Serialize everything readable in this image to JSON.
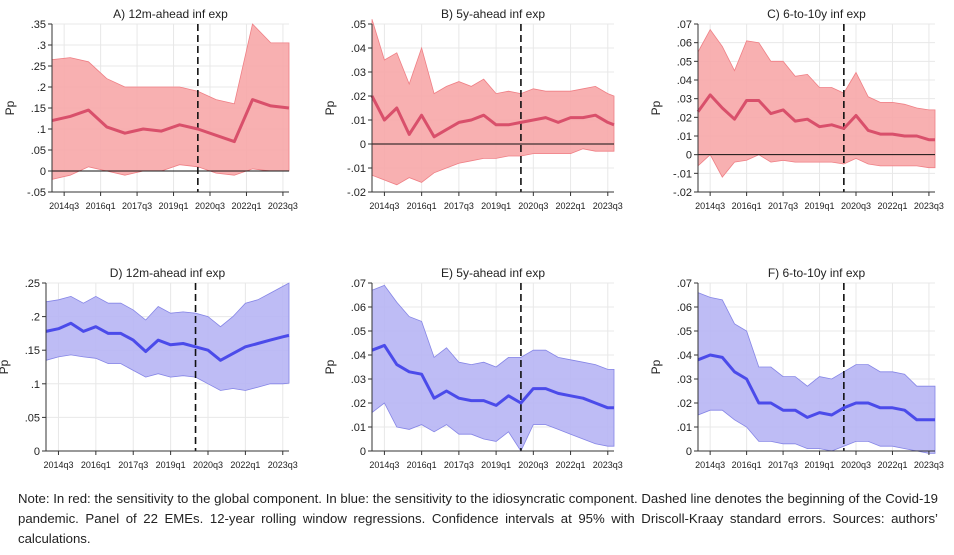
{
  "x_ticks": [
    "2014q3",
    "2016q1",
    "2017q3",
    "2019q1",
    "2020q3",
    "2022q1",
    "2023q3"
  ],
  "ylabel": "Pp",
  "colors": {
    "red_line": "#d9506b",
    "red_band": "#f7a7a9",
    "red_band_edge": "#ef7f85",
    "blue_line": "#4b4bea",
    "blue_band": "#b7b5f4",
    "blue_band_edge": "#8585e6"
  },
  "note": "Note: In red: the sensitivity to the global component. In blue: the sensitivity to the idiosyncratic component. Dashed line denotes the beginning of the Covid-19 pandemic. Panel of 22 EMEs. 12-year rolling window regressions. Confidence intervals at 95% with Driscoll-Kraay standard errors. Sources: authors’ calculations.",
  "chart_data": [
    {
      "type": "line",
      "title": "A) 12m-ahead inf exp",
      "ylabel": "Pp",
      "color": "red",
      "ylim": [
        -0.05,
        0.35
      ],
      "yticks": [
        -0.05,
        0,
        0.05,
        0.1,
        0.15,
        0.2,
        0.25,
        0.3,
        0.35
      ],
      "ytick_labels": [
        "-.05",
        "0",
        ".05",
        ".1",
        ".15",
        ".2",
        ".25",
        ".3",
        ".35"
      ],
      "zero_line": true,
      "dashed_at": "2020q1",
      "x": [
        "2014q1",
        "2014q4",
        "2015q3",
        "2016q2",
        "2017q1",
        "2017q4",
        "2018q3",
        "2019q2",
        "2020q1",
        "2020q4",
        "2021q3",
        "2022q2",
        "2023q1",
        "2023q4"
      ],
      "series": [
        {
          "values": [
            0.12,
            0.13,
            0.145,
            0.105,
            0.09,
            0.1,
            0.095,
            0.11,
            0.1,
            0.085,
            0.07,
            0.17,
            0.155,
            0.15
          ],
          "lower": [
            -0.02,
            -0.01,
            0.01,
            0.0,
            -0.01,
            0.0,
            0.0,
            0.015,
            0.01,
            -0.005,
            -0.01,
            0.005,
            0.0,
            0.0
          ],
          "upper": [
            0.265,
            0.27,
            0.26,
            0.22,
            0.2,
            0.2,
            0.2,
            0.2,
            0.19,
            0.17,
            0.16,
            0.35,
            0.305,
            0.305
          ]
        }
      ]
    },
    {
      "type": "line",
      "title": "B) 5y-ahead inf exp",
      "ylabel": "Pp",
      "color": "red",
      "ylim": [
        -0.02,
        0.05
      ],
      "yticks": [
        -0.02,
        -0.01,
        0,
        0.01,
        0.02,
        0.03,
        0.04,
        0.05
      ],
      "ytick_labels": [
        "-.02",
        "-.01",
        "0",
        ".01",
        ".02",
        ".03",
        ".04",
        ".05"
      ],
      "zero_line": true,
      "dashed_at": "2020q1",
      "x": [
        "2014q1",
        "2014q3",
        "2015q1",
        "2015q3",
        "2016q1",
        "2016q3",
        "2017q1",
        "2017q3",
        "2018q1",
        "2018q3",
        "2019q1",
        "2019q3",
        "2020q1",
        "2020q3",
        "2021q1",
        "2021q3",
        "2022q1",
        "2022q3",
        "2023q1",
        "2023q3",
        "2023q4"
      ],
      "series": [
        {
          "values": [
            0.02,
            0.01,
            0.015,
            0.004,
            0.012,
            0.003,
            0.006,
            0.009,
            0.01,
            0.012,
            0.008,
            0.008,
            0.009,
            0.01,
            0.011,
            0.009,
            0.011,
            0.011,
            0.012,
            0.009,
            0.008
          ],
          "lower": [
            -0.013,
            -0.015,
            -0.017,
            -0.014,
            -0.016,
            -0.012,
            -0.01,
            -0.008,
            -0.007,
            -0.006,
            -0.006,
            -0.005,
            -0.005,
            -0.004,
            -0.004,
            -0.004,
            -0.004,
            -0.002,
            -0.003,
            -0.003,
            -0.003
          ],
          "upper": [
            0.052,
            0.035,
            0.038,
            0.025,
            0.04,
            0.021,
            0.024,
            0.026,
            0.024,
            0.027,
            0.021,
            0.022,
            0.021,
            0.023,
            0.022,
            0.022,
            0.022,
            0.023,
            0.024,
            0.021,
            0.02
          ]
        }
      ]
    },
    {
      "type": "line",
      "title": "C) 6-to-10y inf exp",
      "ylabel": "Pp",
      "color": "red",
      "ylim": [
        -0.02,
        0.07
      ],
      "yticks": [
        -0.02,
        -0.01,
        0,
        0.01,
        0.02,
        0.03,
        0.04,
        0.05,
        0.06,
        0.07
      ],
      "ytick_labels": [
        "-.02",
        "-.01",
        "0",
        ".01",
        ".02",
        ".03",
        ".04",
        ".05",
        ".06",
        ".07"
      ],
      "zero_line": true,
      "dashed_at": "2020q1",
      "x": [
        "2014q1",
        "2014q3",
        "2015q1",
        "2015q3",
        "2016q1",
        "2016q3",
        "2017q1",
        "2017q3",
        "2018q1",
        "2018q3",
        "2019q1",
        "2019q3",
        "2020q1",
        "2020q3",
        "2021q1",
        "2021q3",
        "2022q1",
        "2022q3",
        "2023q1",
        "2023q3",
        "2023q4"
      ],
      "series": [
        {
          "values": [
            0.023,
            0.032,
            0.025,
            0.019,
            0.029,
            0.029,
            0.022,
            0.024,
            0.018,
            0.019,
            0.015,
            0.016,
            0.014,
            0.021,
            0.013,
            0.011,
            0.011,
            0.01,
            0.01,
            0.008,
            0.008
          ],
          "lower": [
            -0.006,
            0.0,
            -0.012,
            -0.004,
            -0.003,
            0.0,
            -0.004,
            -0.003,
            -0.004,
            -0.004,
            -0.004,
            -0.004,
            -0.005,
            -0.002,
            -0.005,
            -0.006,
            -0.006,
            -0.006,
            -0.006,
            -0.007,
            -0.007
          ],
          "upper": [
            0.055,
            0.067,
            0.058,
            0.045,
            0.061,
            0.06,
            0.05,
            0.05,
            0.042,
            0.043,
            0.036,
            0.036,
            0.033,
            0.044,
            0.031,
            0.028,
            0.028,
            0.027,
            0.025,
            0.024,
            0.024
          ]
        }
      ]
    },
    {
      "type": "line",
      "title": "D) 12m-ahead inf exp",
      "ylabel": "Pp",
      "color": "blue",
      "ylim": [
        0,
        0.25
      ],
      "yticks": [
        0,
        0.05,
        0.1,
        0.15,
        0.2,
        0.25
      ],
      "ytick_labels": [
        "0",
        ".05",
        ".1",
        ".15",
        ".2",
        ".25"
      ],
      "zero_line": false,
      "dashed_at": "2020q1",
      "x": [
        "2014q1",
        "2014q3",
        "2015q1",
        "2015q3",
        "2016q1",
        "2016q3",
        "2017q1",
        "2017q3",
        "2018q1",
        "2018q3",
        "2019q1",
        "2019q3",
        "2020q1",
        "2020q3",
        "2021q1",
        "2021q3",
        "2022q1",
        "2022q3",
        "2023q1",
        "2023q3",
        "2023q4"
      ],
      "series": [
        {
          "values": [
            0.178,
            0.182,
            0.19,
            0.178,
            0.185,
            0.175,
            0.175,
            0.165,
            0.148,
            0.165,
            0.158,
            0.16,
            0.155,
            0.15,
            0.135,
            0.145,
            0.155,
            0.16,
            0.165,
            0.17,
            0.172
          ],
          "lower": [
            0.135,
            0.14,
            0.143,
            0.14,
            0.138,
            0.13,
            0.13,
            0.12,
            0.11,
            0.115,
            0.11,
            0.112,
            0.11,
            0.1,
            0.09,
            0.093,
            0.09,
            0.095,
            0.1,
            0.1,
            0.101
          ],
          "upper": [
            0.222,
            0.225,
            0.23,
            0.22,
            0.23,
            0.22,
            0.22,
            0.21,
            0.195,
            0.215,
            0.205,
            0.207,
            0.205,
            0.2,
            0.185,
            0.2,
            0.22,
            0.225,
            0.235,
            0.245,
            0.25
          ]
        }
      ]
    },
    {
      "type": "line",
      "title": "E) 5y-ahead inf exp",
      "ylabel": "Pp",
      "color": "blue",
      "ylim": [
        0,
        0.07
      ],
      "yticks": [
        0,
        0.01,
        0.02,
        0.03,
        0.04,
        0.05,
        0.06,
        0.07
      ],
      "ytick_labels": [
        "0",
        ".01",
        ".02",
        ".03",
        ".04",
        ".05",
        ".06",
        ".07"
      ],
      "zero_line": false,
      "dashed_at": "2020q1",
      "x": [
        "2014q1",
        "2014q3",
        "2015q1",
        "2015q3",
        "2016q1",
        "2016q3",
        "2017q1",
        "2017q3",
        "2018q1",
        "2018q3",
        "2019q1",
        "2019q3",
        "2020q1",
        "2020q3",
        "2021q1",
        "2021q3",
        "2022q1",
        "2022q3",
        "2023q1",
        "2023q3",
        "2023q4"
      ],
      "series": [
        {
          "values": [
            0.042,
            0.044,
            0.036,
            0.033,
            0.032,
            0.022,
            0.025,
            0.022,
            0.021,
            0.021,
            0.019,
            0.023,
            0.02,
            0.026,
            0.026,
            0.024,
            0.023,
            0.022,
            0.02,
            0.018,
            0.018
          ],
          "lower": [
            0.016,
            0.02,
            0.01,
            0.009,
            0.011,
            0.008,
            0.011,
            0.007,
            0.007,
            0.005,
            0.004,
            0.008,
            0.0,
            0.011,
            0.011,
            0.009,
            0.007,
            0.005,
            0.003,
            0.002,
            0.002
          ],
          "upper": [
            0.067,
            0.069,
            0.062,
            0.056,
            0.054,
            0.039,
            0.043,
            0.037,
            0.036,
            0.037,
            0.035,
            0.039,
            0.039,
            0.042,
            0.042,
            0.039,
            0.038,
            0.037,
            0.036,
            0.034,
            0.034
          ]
        }
      ]
    },
    {
      "type": "line",
      "title": "F) 6-to-10y inf exp",
      "ylabel": "Pp",
      "color": "blue",
      "ylim": [
        0,
        0.07
      ],
      "yticks": [
        0,
        0.01,
        0.02,
        0.03,
        0.04,
        0.05,
        0.06,
        0.07
      ],
      "ytick_labels": [
        "0",
        ".01",
        ".02",
        ".03",
        ".04",
        ".05",
        ".06",
        ".07"
      ],
      "zero_line": true,
      "dashed_at": "2020q1",
      "x": [
        "2014q1",
        "2014q3",
        "2015q1",
        "2015q3",
        "2016q1",
        "2016q3",
        "2017q1",
        "2017q3",
        "2018q1",
        "2018q3",
        "2019q1",
        "2019q3",
        "2020q1",
        "2020q3",
        "2021q1",
        "2021q3",
        "2022q1",
        "2022q3",
        "2023q1",
        "2023q3",
        "2023q4"
      ],
      "series": [
        {
          "values": [
            0.038,
            0.04,
            0.039,
            0.033,
            0.03,
            0.02,
            0.02,
            0.017,
            0.017,
            0.014,
            0.016,
            0.015,
            0.018,
            0.02,
            0.02,
            0.018,
            0.018,
            0.017,
            0.013,
            0.013,
            0.013
          ],
          "lower": [
            0.015,
            0.017,
            0.017,
            0.013,
            0.01,
            0.004,
            0.004,
            0.003,
            0.003,
            0.001,
            0.001,
            0.0,
            0.002,
            0.004,
            0.004,
            0.002,
            0.002,
            0.001,
            0.0,
            -0.001,
            -0.001
          ],
          "upper": [
            0.066,
            0.064,
            0.063,
            0.053,
            0.05,
            0.035,
            0.035,
            0.031,
            0.031,
            0.027,
            0.031,
            0.03,
            0.033,
            0.036,
            0.036,
            0.033,
            0.033,
            0.032,
            0.027,
            0.027,
            0.027
          ]
        }
      ]
    }
  ]
}
